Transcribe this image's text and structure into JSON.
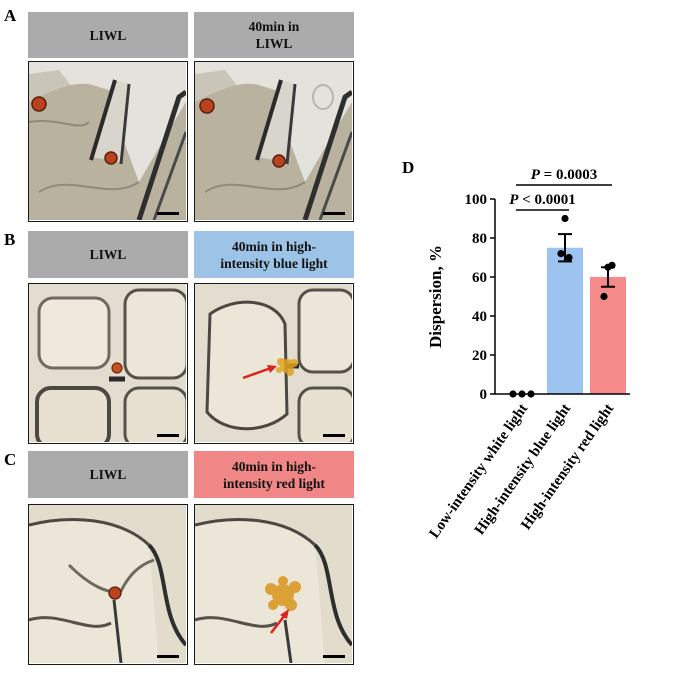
{
  "panel_A": {
    "letter": "A",
    "left_header": "LIWL",
    "right_header_lines": [
      "40min in",
      "LIWL"
    ]
  },
  "panel_B": {
    "letter": "B",
    "left_header": "LIWL",
    "right_header_lines": [
      "40min in high-",
      "intensity blue light"
    ]
  },
  "panel_C": {
    "letter": "C",
    "left_header": "LIWL",
    "right_header_lines": [
      "40min in high-",
      "intensity red light"
    ]
  },
  "colors": {
    "header_gray": "#ababab",
    "header_blue": "#9dc3e6",
    "header_red": "#f08686",
    "bar_blue": "#9dc3f0",
    "bar_red": "#f58a8a",
    "arrow_red": "#e0201b",
    "chloroplast": "#b8431c"
  },
  "chart_data": {
    "type": "bar",
    "panel_label": "D",
    "ylabel": "Dispersion, %",
    "ylim": [
      0,
      100
    ],
    "yticks": [
      0,
      20,
      40,
      60,
      80,
      100
    ],
    "categories": [
      "Low-intensity white light",
      "High-intensity blue light",
      "High-intensity red light"
    ],
    "values": [
      0,
      75,
      60
    ],
    "sem": [
      0,
      7,
      5
    ],
    "points": [
      [
        0,
        0,
        0
      ],
      [
        90,
        72,
        70
      ],
      [
        66,
        65,
        50
      ]
    ],
    "bar_colors": [
      "#ffffff",
      "#9dc3f0",
      "#f58a8a"
    ],
    "significance": [
      {
        "from": 0,
        "to": 1,
        "label": "< 0.0001"
      },
      {
        "from": 0,
        "to": 2,
        "label": "= 0.0003"
      }
    ],
    "significance_prefix": "P"
  }
}
